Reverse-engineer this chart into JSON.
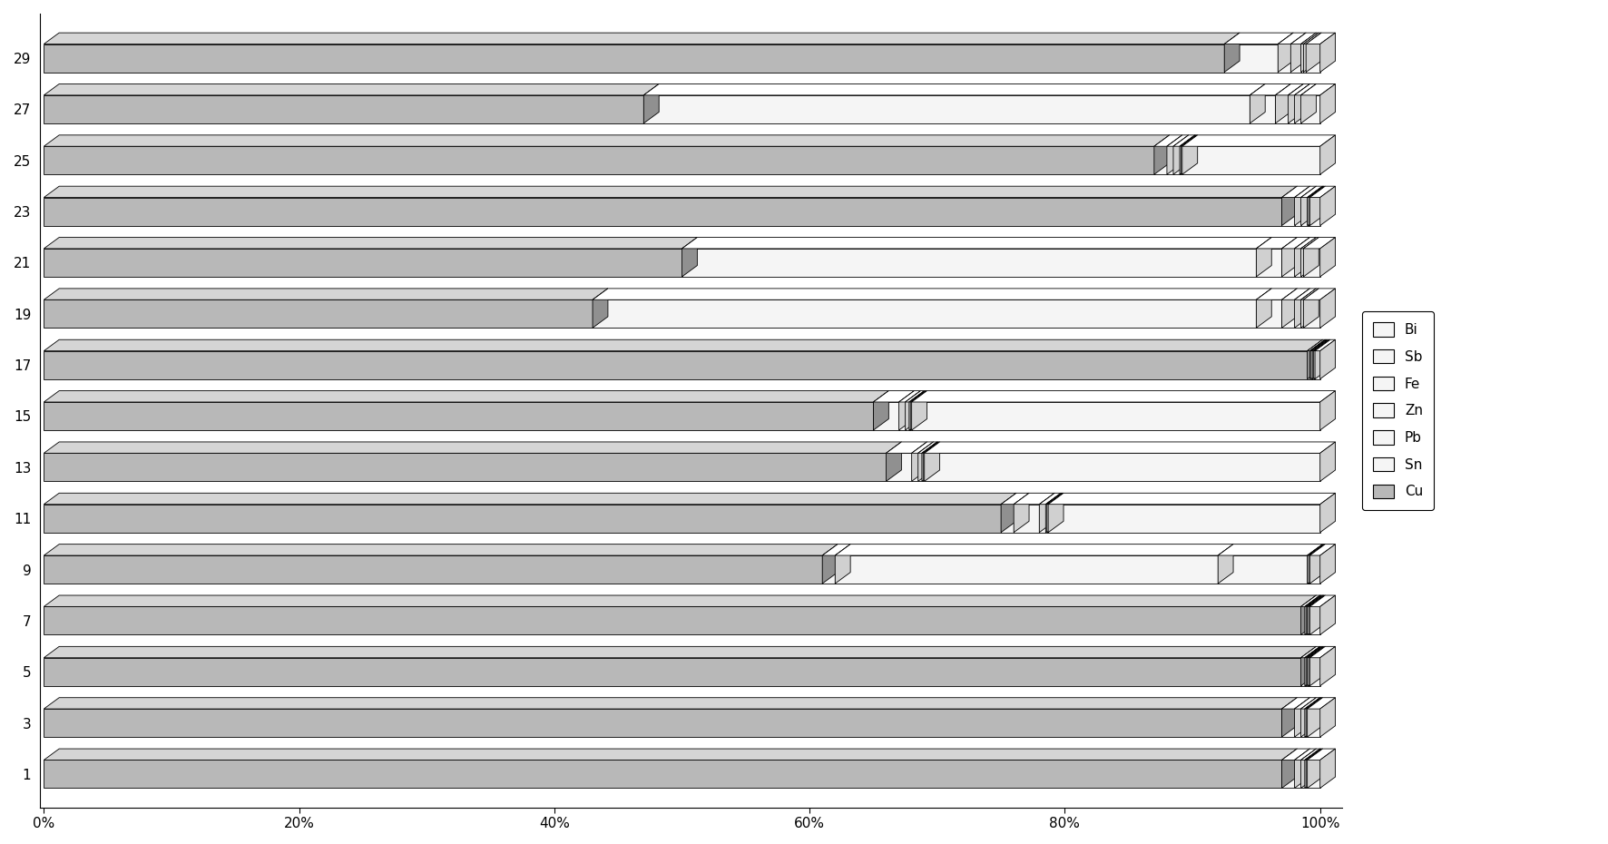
{
  "categories": [
    1,
    3,
    5,
    7,
    9,
    11,
    13,
    15,
    17,
    19,
    21,
    23,
    25,
    27,
    29
  ],
  "series_order": [
    "Cu",
    "Sn",
    "Pb",
    "Zn",
    "Fe",
    "Sb",
    "Bi"
  ],
  "raw_data": [
    {
      "id": 1,
      "Cu": 97.0,
      "Sn": 1.0,
      "Pb": 0.5,
      "Zn": 0.3,
      "Fe": 0.1,
      "Sb": 0.1,
      "Bi": 1.0
    },
    {
      "id": 3,
      "Cu": 97.0,
      "Sn": 1.0,
      "Pb": 0.5,
      "Zn": 0.3,
      "Fe": 0.1,
      "Sb": 0.1,
      "Bi": 1.0
    },
    {
      "id": 5,
      "Cu": 98.5,
      "Sn": 0.3,
      "Pb": 0.1,
      "Zn": 0.1,
      "Fe": 0.1,
      "Sb": 0.1,
      "Bi": 0.8
    },
    {
      "id": 7,
      "Cu": 98.5,
      "Sn": 0.3,
      "Pb": 0.1,
      "Zn": 0.1,
      "Fe": 0.1,
      "Sb": 0.1,
      "Bi": 0.8
    },
    {
      "id": 9,
      "Cu": 61.0,
      "Sn": 1.0,
      "Pb": 30.0,
      "Zn": 7.0,
      "Fe": 0.1,
      "Sb": 0.1,
      "Bi": 0.8
    },
    {
      "id": 11,
      "Cu": 75.0,
      "Sn": 1.0,
      "Pb": 2.0,
      "Zn": 0.5,
      "Fe": 0.1,
      "Sb": 0.1,
      "Bi": 21.3
    },
    {
      "id": 13,
      "Cu": 66.0,
      "Sn": 2.0,
      "Pb": 0.5,
      "Zn": 0.3,
      "Fe": 0.1,
      "Sb": 0.1,
      "Bi": 31.0
    },
    {
      "id": 15,
      "Cu": 65.0,
      "Sn": 2.0,
      "Pb": 0.5,
      "Zn": 0.3,
      "Fe": 0.1,
      "Sb": 0.1,
      "Bi": 32.0
    },
    {
      "id": 17,
      "Cu": 99.0,
      "Sn": 0.2,
      "Pb": 0.1,
      "Zn": 0.1,
      "Fe": 0.1,
      "Sb": 0.1,
      "Bi": 0.4
    },
    {
      "id": 19,
      "Cu": 43.0,
      "Sn": 52.0,
      "Pb": 2.0,
      "Zn": 1.0,
      "Fe": 0.5,
      "Sb": 0.2,
      "Bi": 1.3
    },
    {
      "id": 21,
      "Cu": 50.0,
      "Sn": 45.0,
      "Pb": 2.0,
      "Zn": 1.0,
      "Fe": 0.5,
      "Sb": 0.2,
      "Bi": 1.3
    },
    {
      "id": 23,
      "Cu": 97.0,
      "Sn": 1.0,
      "Pb": 0.5,
      "Zn": 0.5,
      "Fe": 0.1,
      "Sb": 0.1,
      "Bi": 0.8
    },
    {
      "id": 25,
      "Cu": 87.0,
      "Sn": 1.0,
      "Pb": 0.5,
      "Zn": 0.5,
      "Fe": 0.1,
      "Sb": 0.1,
      "Bi": 10.8
    },
    {
      "id": 27,
      "Cu": 47.0,
      "Sn": 47.5,
      "Pb": 2.0,
      "Zn": 1.0,
      "Fe": 0.5,
      "Sb": 0.5,
      "Bi": 1.5
    },
    {
      "id": 29,
      "Cu": 92.5,
      "Sn": 4.2,
      "Pb": 1.0,
      "Zn": 0.8,
      "Fe": 0.2,
      "Sb": 0.2,
      "Bi": 1.1
    }
  ],
  "series_colors": {
    "Cu": "#b8b8b8",
    "Sn": "#f5f5f5",
    "Pb": "#f5f5f5",
    "Zn": "#f5f5f5",
    "Fe": "#f5f5f5",
    "Sb": "#f5f5f5",
    "Bi": "#f5f5f5"
  },
  "series_top_colors": {
    "Cu": "#d5d5d5",
    "Sn": "#ffffff",
    "Pb": "#ffffff",
    "Zn": "#ffffff",
    "Fe": "#ffffff",
    "Sb": "#ffffff",
    "Bi": "#ffffff"
  },
  "series_side_colors": {
    "Cu": "#909090",
    "Sn": "#d0d0d0",
    "Pb": "#d0d0d0",
    "Zn": "#d0d0d0",
    "Fe": "#d0d0d0",
    "Sb": "#d0d0d0",
    "Bi": "#d0d0d0"
  },
  "legend_labels": [
    "Bi",
    "Sb",
    "Fe",
    "Zn",
    "Pb",
    "Sn",
    "Cu"
  ],
  "xtick_labels": [
    "0%",
    "20%",
    "40%",
    "60%",
    "80%",
    "100%"
  ],
  "xtick_vals": [
    0.0,
    0.2,
    0.4,
    0.6,
    0.8,
    1.0
  ]
}
